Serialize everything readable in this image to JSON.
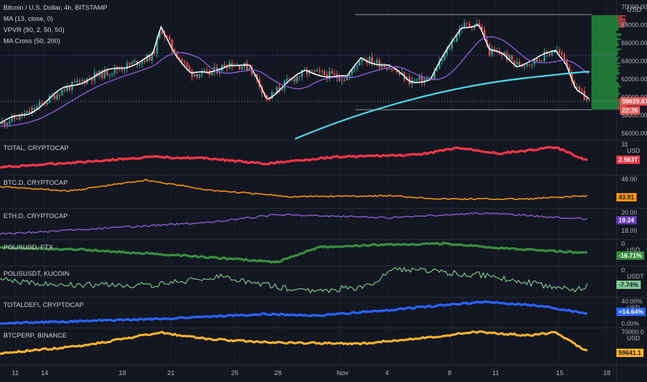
{
  "main": {
    "title": "Bitcoin / U.S. Dollar, 4h, BITSTAMP",
    "ind1": "MA (13, close, 0)",
    "ind2": "VPVR (90, 2, 50, 50)",
    "ind3": "MA Cross (50, 200)",
    "currency": "USD",
    "ticks": [
      "70000.00",
      "68000.00",
      "66000.00",
      "64000.00",
      "62000.00",
      "60000.00",
      "58000.00",
      "56000.00"
    ],
    "price_tag": "59629.87",
    "countdown": "22:26",
    "colors": {
      "up": "#26a69a",
      "down": "#ef5350",
      "ma13": "#ffffff",
      "ma50": "#7e57c2",
      "ma200": "#4dd0e1",
      "vpvr": "#26a641"
    }
  },
  "panels": [
    {
      "label": "TOTAL, CRYPTOCAP",
      "unit": "USD",
      "top_tick": "31",
      "bottom_tick": "",
      "tag": "2.563T",
      "color": "#f23645",
      "tag_color": "#f23645"
    },
    {
      "label": "BTC.D, CRYPTOCAP",
      "unit": "",
      "top_tick": "",
      "bottom_tick": "48.00",
      "tag": "43.91",
      "color": "#ff9800",
      "tag_color": "#ff9800"
    },
    {
      "label": "ETH.D, CRYPTOCAP",
      "unit": "",
      "top_tick": "20.00",
      "bottom_tick": "18.00",
      "tag": "19.24",
      "color": "#7e57c2",
      "tag_color": "#673ab7"
    },
    {
      "label": "POLISUSD, FTX",
      "unit": "USD",
      "top_tick": "0.",
      "bottom_tick": "",
      "tag": "-16.71%",
      "color": "#388e3c",
      "tag_color": "#388e3c"
    },
    {
      "label": "POLISUSDT, KUCOIN",
      "unit": "USDT",
      "top_tick": "0.",
      "bottom_tick": "",
      "tag": "-7.74%",
      "color": "#81c995",
      "tag_color": "#81c995"
    },
    {
      "label": "TOTALDEFI, CRYPTOCAP",
      "unit": "USD",
      "top_tick": "40.00%",
      "bottom_tick": "0.00%",
      "tag": "+14.64%",
      "color": "#2962ff",
      "tag_color": "#2962ff"
    },
    {
      "label": "BTCPERP, BINANCE",
      "unit": "USD",
      "top_tick": "70000.0",
      "bottom_tick": "",
      "tag": "59641.1",
      "color": "#ffb22e",
      "tag_color": "#ffb22e"
    }
  ],
  "x_axis": [
    "11",
    "14",
    "18",
    "21",
    "25",
    "28",
    "Nov",
    "4",
    "8",
    "11",
    "15",
    "18"
  ]
}
